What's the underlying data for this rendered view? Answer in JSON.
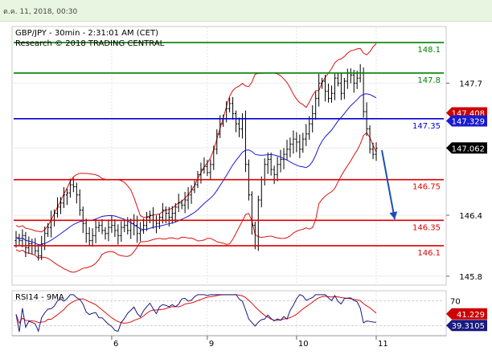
{
  "timestamp": "ต.ค. 11, 2018, 00:30",
  "chart_data": {
    "type": "candlestick",
    "title": "GBP/JPY - 30min - 2:31:01 AM (CET)",
    "subtitle": "Research © 2018 TRADING CENTRAL",
    "price_axis": {
      "ticks": [
        "147.7",
        "147.062",
        "146.4",
        "145.8"
      ],
      "ylim": [
        145.72,
        148.25
      ]
    },
    "x_ticks": [
      "6",
      "9",
      "10",
      "11"
    ],
    "levels": [
      {
        "label": "148.1",
        "value": 148.1,
        "color": "#008000"
      },
      {
        "label": "147.8",
        "value": 147.8,
        "color": "#008000"
      },
      {
        "label": "147.35",
        "value": 147.35,
        "color": "#0000cc"
      },
      {
        "label": "146.75",
        "value": 146.75,
        "color": "#dd0000"
      },
      {
        "label": "146.35",
        "value": 146.35,
        "color": "#dd0000"
      },
      {
        "label": "146.1",
        "value": 146.1,
        "color": "#dd0000"
      }
    ],
    "price_tags": [
      {
        "label": "147.408",
        "value": 147.408,
        "color": "#cc0000"
      },
      {
        "label": "147.329",
        "value": 147.329,
        "color": "#1a1ad0"
      },
      {
        "label": "147.062",
        "value": 147.062,
        "color": "#000000"
      }
    ],
    "closes": [
      146.18,
      146.15,
      146.2,
      146.08,
      146.12,
      146.1,
      146.05,
      146.0,
      146.12,
      146.22,
      146.28,
      146.35,
      146.42,
      146.48,
      146.52,
      146.6,
      146.62,
      146.7,
      146.68,
      146.6,
      146.45,
      146.32,
      146.22,
      146.15,
      146.2,
      146.28,
      146.3,
      146.25,
      146.22,
      146.28,
      146.3,
      146.25,
      146.2,
      146.28,
      146.3,
      146.25,
      146.32,
      146.3,
      146.22,
      146.25,
      146.3,
      146.38,
      146.4,
      146.35,
      146.32,
      146.38,
      146.45,
      146.42,
      146.38,
      146.42,
      146.48,
      146.52,
      146.5,
      146.55,
      146.6,
      146.65,
      146.7,
      146.8,
      146.85,
      146.88,
      146.82,
      146.9,
      147.05,
      147.2,
      147.3,
      147.35,
      147.45,
      147.5,
      147.4,
      147.3,
      147.25,
      147.35,
      146.9,
      146.6,
      146.3,
      146.1,
      146.55,
      146.75,
      146.9,
      146.95,
      146.85,
      146.8,
      146.9,
      146.95,
      147.0,
      147.05,
      147.1,
      147.15,
      147.12,
      147.05,
      147.15,
      147.2,
      147.3,
      147.4,
      147.55,
      147.7,
      147.72,
      147.62,
      147.55,
      147.6,
      147.75,
      147.7,
      147.6,
      147.72,
      147.8,
      147.78,
      147.7,
      147.75,
      147.8,
      147.42,
      147.25,
      147.05,
      147.0,
      147.06
    ],
    "rsi": {
      "label": "RSI14 - 9MA",
      "ticks": [
        "70",
        "30"
      ],
      "ylim": [
        15,
        85
      ],
      "tags": [
        {
          "label": "41.229",
          "value": 41.229,
          "color": "#cc0000"
        },
        {
          "label": "39.3105",
          "value": 39.3105,
          "color": "#1a1a80"
        }
      ]
    }
  }
}
